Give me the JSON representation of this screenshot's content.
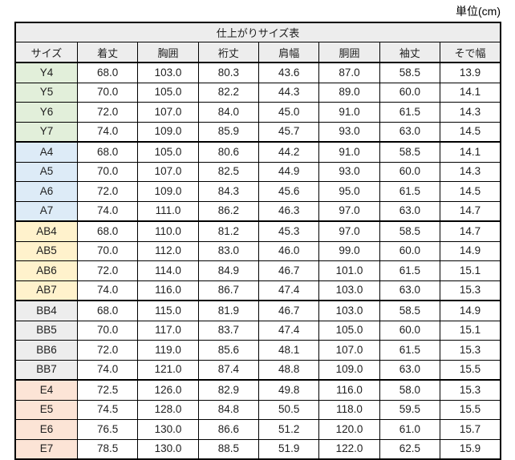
{
  "unit_label": "単位(cm)",
  "chart_data": {
    "type": "table",
    "title": "仕上がりサイズ表",
    "columns": [
      "サイズ",
      "着丈",
      "胸囲",
      "裄丈",
      "肩幅",
      "胴囲",
      "袖丈",
      "そで幅"
    ],
    "groups": [
      {
        "name": "Y",
        "label_bg": "#e2efda",
        "rows": [
          {
            "size": "Y4",
            "values": [
              "68.0",
              "103.0",
              "80.3",
              "43.6",
              "87.0",
              "58.5",
              "13.9"
            ]
          },
          {
            "size": "Y5",
            "values": [
              "70.0",
              "105.0",
              "82.2",
              "44.3",
              "89.0",
              "60.0",
              "14.1"
            ]
          },
          {
            "size": "Y6",
            "values": [
              "72.0",
              "107.0",
              "84.0",
              "45.0",
              "91.0",
              "61.5",
              "14.3"
            ]
          },
          {
            "size": "Y7",
            "values": [
              "74.0",
              "109.0",
              "85.9",
              "45.7",
              "93.0",
              "63.0",
              "14.5"
            ]
          }
        ]
      },
      {
        "name": "A",
        "label_bg": "#ddebf7",
        "rows": [
          {
            "size": "A4",
            "values": [
              "68.0",
              "105.0",
              "80.6",
              "44.2",
              "91.0",
              "58.5",
              "14.1"
            ]
          },
          {
            "size": "A5",
            "values": [
              "70.0",
              "107.0",
              "82.5",
              "44.9",
              "93.0",
              "60.0",
              "14.3"
            ]
          },
          {
            "size": "A6",
            "values": [
              "72.0",
              "109.0",
              "84.3",
              "45.6",
              "95.0",
              "61.5",
              "14.5"
            ]
          },
          {
            "size": "A7",
            "values": [
              "74.0",
              "111.0",
              "86.2",
              "46.3",
              "97.0",
              "63.0",
              "14.7"
            ]
          }
        ]
      },
      {
        "name": "AB",
        "label_bg": "#fff2cc",
        "rows": [
          {
            "size": "AB4",
            "values": [
              "68.0",
              "110.0",
              "81.2",
              "45.3",
              "97.0",
              "58.5",
              "14.7"
            ]
          },
          {
            "size": "AB5",
            "values": [
              "70.0",
              "112.0",
              "83.0",
              "46.0",
              "99.0",
              "60.0",
              "14.9"
            ]
          },
          {
            "size": "AB6",
            "values": [
              "72.0",
              "114.0",
              "84.9",
              "46.7",
              "101.0",
              "61.5",
              "15.1"
            ]
          },
          {
            "size": "AB7",
            "values": [
              "74.0",
              "116.0",
              "86.7",
              "47.4",
              "103.0",
              "63.0",
              "15.3"
            ]
          }
        ]
      },
      {
        "name": "BB",
        "label_bg": "#ededed",
        "rows": [
          {
            "size": "BB4",
            "values": [
              "68.0",
              "115.0",
              "81.9",
              "46.7",
              "103.0",
              "58.5",
              "14.9"
            ]
          },
          {
            "size": "BB5",
            "values": [
              "70.0",
              "117.0",
              "83.7",
              "47.4",
              "105.0",
              "60.0",
              "15.1"
            ]
          },
          {
            "size": "BB6",
            "values": [
              "72.0",
              "119.0",
              "85.6",
              "48.1",
              "107.0",
              "61.5",
              "15.3"
            ]
          },
          {
            "size": "BB7",
            "values": [
              "74.0",
              "121.0",
              "87.4",
              "48.8",
              "109.0",
              "63.0",
              "15.5"
            ]
          }
        ]
      },
      {
        "name": "E",
        "label_bg": "#fce4d6",
        "rows": [
          {
            "size": "E4",
            "values": [
              "72.5",
              "126.0",
              "82.9",
              "49.8",
              "116.0",
              "58.0",
              "15.3"
            ]
          },
          {
            "size": "E5",
            "values": [
              "74.5",
              "128.0",
              "84.8",
              "50.5",
              "118.0",
              "59.5",
              "15.5"
            ]
          },
          {
            "size": "E6",
            "values": [
              "76.5",
              "130.0",
              "86.6",
              "51.2",
              "120.0",
              "61.0",
              "15.7"
            ]
          },
          {
            "size": "E7",
            "values": [
              "78.5",
              "130.0",
              "88.5",
              "51.9",
              "122.0",
              "62.5",
              "15.9"
            ]
          }
        ]
      }
    ],
    "layout": {
      "header_bg": "#ededed",
      "value_bg": "#ffffff",
      "border_color": "#000000",
      "text_color": "#1f1f1f",
      "grid": true,
      "legend": "none"
    }
  }
}
